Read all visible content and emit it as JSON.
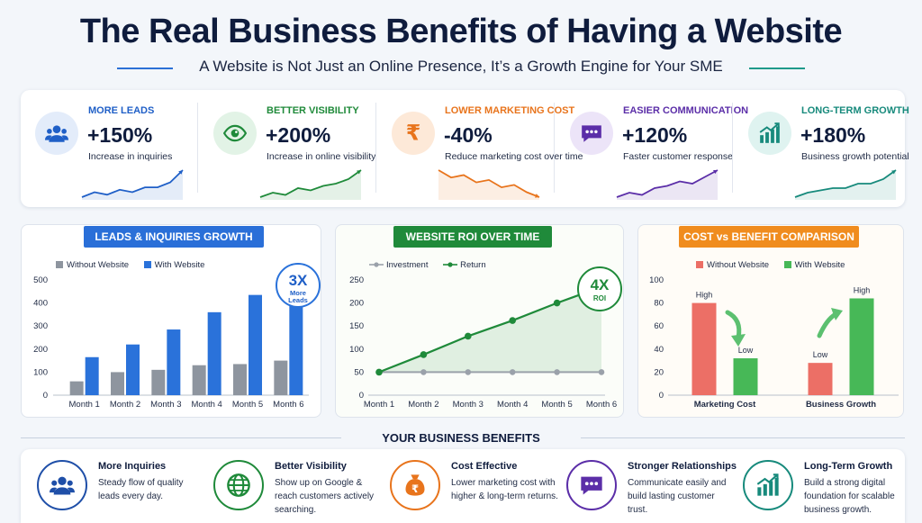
{
  "header": {
    "title": "The Real Business Benefits of Having a Website",
    "subtitle": "A Website is Not Just an Online Presence, It’s a Growth Engine for Your SME"
  },
  "kpis": [
    {
      "label": "MORE LEADS",
      "value": "+150%",
      "desc": "Increase in inquiries",
      "color": "#1f5fc7",
      "bg": "#e3ecfa",
      "icon": "users-icon",
      "trend": [
        3,
        5,
        4,
        6,
        5,
        7,
        7,
        9,
        14
      ]
    },
    {
      "label": "BETTER VISIBILITY",
      "value": "+200%",
      "desc": "Increase in online visibility",
      "color": "#1f8a3a",
      "bg": "#e2f3e6",
      "icon": "eye-icon",
      "trend": [
        2,
        4,
        3,
        6,
        5,
        7,
        8,
        10,
        14
      ]
    },
    {
      "label": "LOWER MARKETING COST",
      "value": "-40%",
      "desc": "Reduce marketing cost over time",
      "color": "#e8741c",
      "bg": "#fde9d8",
      "icon": "rupee-icon",
      "trend": [
        14,
        11,
        12,
        9,
        10,
        7,
        8,
        5,
        3
      ]
    },
    {
      "label": "EASIER COMMUNICATION",
      "value": "+120%",
      "desc": "Faster customer response",
      "color": "#5b2ea8",
      "bg": "#ece4f8",
      "icon": "chat-icon",
      "trend": [
        2,
        4,
        3,
        6,
        7,
        9,
        8,
        11,
        14
      ]
    },
    {
      "label": "LONG-TERM GROWTH",
      "value": "+180%",
      "desc": "Business growth potential",
      "color": "#178a7c",
      "bg": "#dff3f0",
      "icon": "growth-chart-icon",
      "trend": [
        2,
        4,
        5,
        6,
        6,
        8,
        8,
        10,
        14
      ]
    }
  ],
  "charts": {
    "leads": {
      "title": "LEADS & INQUIRIES GROWTH",
      "badge_big": "3X",
      "badge_small": "More Leads",
      "accent": "#2a6fd8"
    },
    "roi": {
      "title": "WEBSITE ROI OVER TIME",
      "badge_big": "4X",
      "badge_small": "ROI",
      "accent": "#1f8a3a"
    },
    "cost": {
      "title": "COST vs BENEFIT COMPARISON",
      "accent": "#f08c1e"
    }
  },
  "chart_data": [
    {
      "type": "bar",
      "title": "LEADS & INQUIRIES GROWTH",
      "categories": [
        "Month 1",
        "Month 2",
        "Month 3",
        "Month 4",
        "Month 5",
        "Month 6"
      ],
      "series": [
        {
          "name": "Without Website",
          "values": [
            60,
            100,
            110,
            130,
            135,
            150
          ],
          "color": "#8e959f"
        },
        {
          "name": "With Website",
          "values": [
            165,
            220,
            285,
            360,
            435,
            470
          ],
          "color": "#2a72da"
        }
      ],
      "ylim": [
        0,
        500
      ],
      "yticks": [
        0,
        100,
        200,
        300,
        400,
        500
      ],
      "legend": "top",
      "grid": false
    },
    {
      "type": "line",
      "title": "WEBSITE ROI OVER TIME",
      "categories": [
        "Month 1",
        "Month 2",
        "Month 3",
        "Month 4",
        "Month 5",
        "Month 6"
      ],
      "series": [
        {
          "name": "Investment",
          "values": [
            50,
            50,
            50,
            50,
            50,
            50
          ],
          "color": "#9aa1aa"
        },
        {
          "name": "Return",
          "values": [
            50,
            88,
            128,
            162,
            200,
            235
          ],
          "color": "#1f8a3a"
        }
      ],
      "ylim": [
        0,
        250
      ],
      "yticks": [
        0,
        50,
        100,
        150,
        200,
        250
      ],
      "legend": "top",
      "grid": false
    },
    {
      "type": "bar",
      "title": "COST vs BENEFIT COMPARISON",
      "categories": [
        "Marketing Cost",
        "Business Growth"
      ],
      "series": [
        {
          "name": "Without Website",
          "values": [
            80,
            28
          ],
          "labels": [
            "High",
            "Low"
          ],
          "color": "#ec6f66"
        },
        {
          "name": "With Website",
          "values": [
            32,
            84
          ],
          "labels": [
            "Low",
            "High"
          ],
          "color": "#47b857"
        }
      ],
      "ylim": [
        0,
        100
      ],
      "yticks": [
        0,
        20,
        40,
        60,
        80,
        100
      ],
      "legend": "top",
      "grid": false
    }
  ],
  "benefits": {
    "heading": "YOUR BUSINESS BENEFITS",
    "items": [
      {
        "title": "More Inquiries",
        "desc": "Steady flow of quality leads every day.",
        "color": "#1f4fa8",
        "icon": "users-icon"
      },
      {
        "title": "Better Visibility",
        "desc": "Show up on Google & reach customers actively searching.",
        "color": "#1f8a3a",
        "icon": "globe-icon"
      },
      {
        "title": "Cost Effective",
        "desc": "Lower marketing cost with higher & long-term returns.",
        "color": "#e8741c",
        "icon": "money-bag-icon"
      },
      {
        "title": "Stronger Relationships",
        "desc": "Communicate easily and build lasting customer trust.",
        "color": "#5b2ea8",
        "icon": "chat-icon"
      },
      {
        "title": "Long-Term Growth",
        "desc": "Build a strong digital foundation for scalable business growth.",
        "color": "#178a7c",
        "icon": "growth-chart-icon"
      }
    ]
  }
}
